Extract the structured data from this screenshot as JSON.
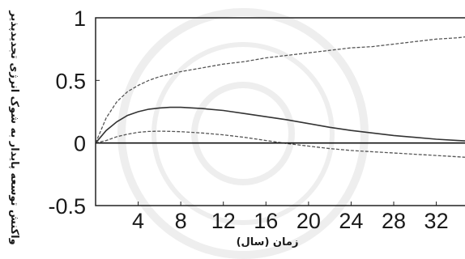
{
  "chart_data": {
    "type": "line",
    "title": "",
    "xlabel": "زمان (سال)",
    "ylabel": "واکنش توسعه پایدار به شوک انرژی تجدیدپذیر",
    "xlim": [
      0,
      35
    ],
    "ylim": [
      -0.5,
      1
    ],
    "xticks": [
      4,
      8,
      12,
      16,
      20,
      24,
      28,
      32
    ],
    "yticks": [
      -0.5,
      0,
      0.5,
      1
    ],
    "ytick_labels": [
      "-0.5",
      "0",
      "0.5",
      "1"
    ],
    "grid": false,
    "legend": "none",
    "x": [
      0,
      1,
      2,
      3,
      4,
      5,
      6,
      7,
      8,
      10,
      12,
      14,
      16,
      18,
      20,
      22,
      24,
      26,
      28,
      30,
      32,
      34,
      35
    ],
    "series": [
      {
        "style": "dashed",
        "color": "#555555",
        "values": [
          0,
          0.2,
          0.33,
          0.41,
          0.46,
          0.5,
          0.53,
          0.55,
          0.57,
          0.6,
          0.63,
          0.65,
          0.68,
          0.7,
          0.72,
          0.74,
          0.76,
          0.77,
          0.79,
          0.81,
          0.83,
          0.84,
          0.85
        ]
      },
      {
        "style": "solid",
        "color": "#333333",
        "values": [
          0,
          0.1,
          0.17,
          0.22,
          0.25,
          0.27,
          0.28,
          0.285,
          0.285,
          0.275,
          0.26,
          0.235,
          0.21,
          0.185,
          0.155,
          0.125,
          0.1,
          0.08,
          0.06,
          0.045,
          0.03,
          0.02,
          0.015
        ]
      },
      {
        "style": "dashed",
        "color": "#555555",
        "values": [
          0,
          0.02,
          0.05,
          0.07,
          0.085,
          0.092,
          0.094,
          0.093,
          0.09,
          0.08,
          0.065,
          0.045,
          0.02,
          -0.005,
          -0.025,
          -0.045,
          -0.06,
          -0.07,
          -0.08,
          -0.09,
          -0.1,
          -0.11,
          -0.115
        ]
      },
      {
        "style": "solid",
        "color": "#111111",
        "values": [
          0,
          0,
          0,
          0,
          0,
          0,
          0,
          0,
          0,
          0,
          0,
          0,
          0,
          0,
          0,
          0,
          0,
          0,
          0,
          0,
          0,
          0,
          0
        ]
      }
    ]
  }
}
